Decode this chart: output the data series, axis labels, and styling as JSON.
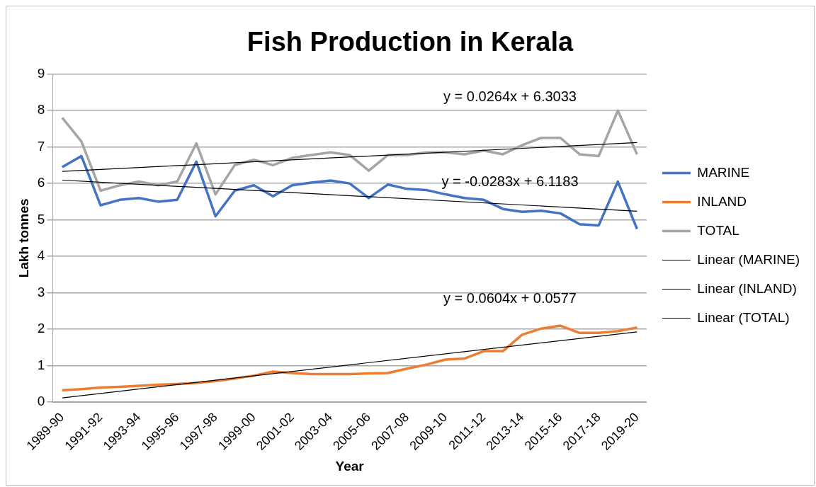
{
  "chart_data": {
    "type": "line",
    "title": "Fish Production in Kerala",
    "xlabel": "Year",
    "ylabel": "Lakh tonnes",
    "categories": [
      "1989-90",
      null,
      "1991-92",
      null,
      "1993-94",
      null,
      "1995-96",
      null,
      "1997-98",
      null,
      "1999-00",
      null,
      "2001-02",
      null,
      "2003-04",
      null,
      "2005-06",
      null,
      "2007-08",
      null,
      "2009-10",
      null,
      "2011-12",
      null,
      "2013-14",
      null,
      "2015-16",
      null,
      "2017-18",
      null,
      "2019-20"
    ],
    "series": [
      {
        "name": "MARINE",
        "color": "#4472c4",
        "values": [
          6.45,
          6.75,
          5.4,
          5.55,
          5.6,
          5.5,
          5.55,
          6.6,
          5.1,
          5.8,
          5.95,
          5.65,
          5.95,
          6.02,
          6.08,
          6.0,
          5.6,
          5.97,
          5.85,
          5.82,
          5.7,
          5.6,
          5.55,
          5.3,
          5.22,
          5.25,
          5.18,
          4.88,
          4.85,
          6.05,
          4.75
        ]
      },
      {
        "name": "INLAND",
        "color": "#ed7d31",
        "values": [
          0.33,
          0.36,
          0.4,
          0.42,
          0.45,
          0.48,
          0.5,
          0.53,
          0.58,
          0.65,
          0.73,
          0.84,
          0.8,
          0.77,
          0.77,
          0.77,
          0.79,
          0.8,
          0.92,
          1.03,
          1.17,
          1.2,
          1.4,
          1.4,
          1.85,
          2.02,
          2.1,
          1.9,
          1.9,
          1.95,
          2.05
        ]
      },
      {
        "name": "TOTAL",
        "color": "#a5a5a5",
        "values": [
          7.8,
          7.15,
          5.8,
          5.95,
          6.05,
          5.95,
          6.05,
          7.1,
          5.7,
          6.5,
          6.65,
          6.5,
          6.7,
          6.78,
          6.85,
          6.78,
          6.35,
          6.78,
          6.78,
          6.85,
          6.85,
          6.8,
          6.9,
          6.8,
          7.05,
          7.25,
          7.25,
          6.8,
          6.75,
          8.0,
          6.8
        ]
      },
      {
        "name": "Linear (MARINE)",
        "type": "line",
        "color": "#000000",
        "x": [
          "1989-90",
          "2019-20"
        ],
        "values": [
          6.09,
          5.24
        ]
      },
      {
        "name": "Linear (INLAND)",
        "type": "line",
        "color": "#000000",
        "x": [
          "1989-90",
          "2019-20"
        ],
        "values": [
          0.12,
          1.93
        ]
      },
      {
        "name": "Linear (TOTAL)",
        "type": "line",
        "color": "#000000",
        "x": [
          "1989-90",
          "2019-20"
        ],
        "values": [
          6.33,
          7.12
        ]
      }
    ],
    "annotations": [
      "y = 0.0264x + 6.3033",
      "y = -0.0283x + 6.1183",
      "y = 0.0604x + 0.0577"
    ],
    "ylim": [
      0,
      9
    ],
    "yticks": [
      0,
      1,
      2,
      3,
      4,
      5,
      6,
      7,
      8,
      9
    ],
    "grid": "y",
    "legend": "right",
    "marker": "none",
    "line_style": "solid"
  }
}
